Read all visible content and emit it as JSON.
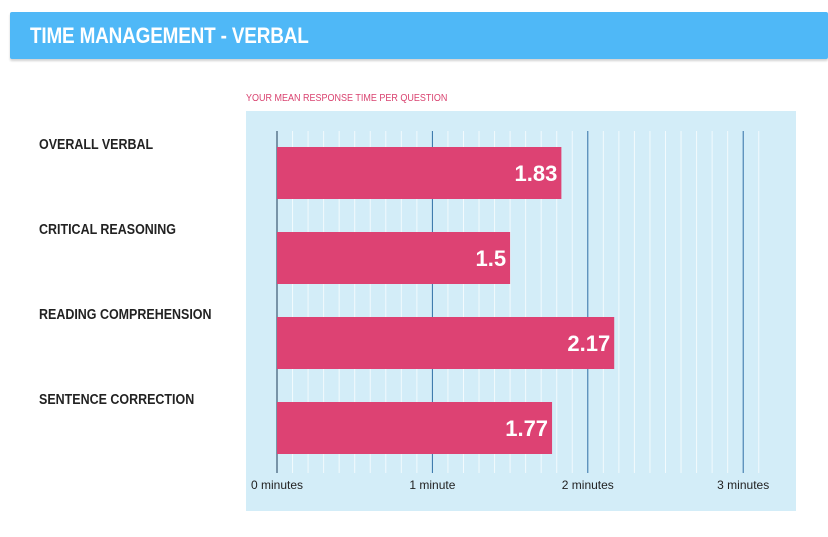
{
  "header": {
    "title": "TIME MANAGEMENT - VERBAL"
  },
  "colors": {
    "header_bg": "#4fb8f7",
    "bar": "#dd4273",
    "plot_bg": "#d3edf8",
    "subtitle": "#d9426f"
  },
  "chart_data": {
    "type": "bar",
    "orientation": "horizontal",
    "title": "YOUR MEAN RESPONSE TIME PER QUESTION",
    "categories": [
      "OVERALL VERBAL",
      "CRITICAL REASONING",
      "READING COMPREHENSION",
      "SENTENCE CORRECTION"
    ],
    "values": [
      1.83,
      1.5,
      2.17,
      1.77
    ],
    "value_labels": [
      "1.83",
      "1.5",
      "2.17",
      "1.77"
    ],
    "xlim": [
      0,
      3.2
    ],
    "x_ticks": [
      0,
      1,
      2,
      3
    ],
    "x_tick_labels": [
      "0 minutes",
      "1 minute",
      "2 minutes",
      "3 minutes"
    ],
    "minor_grid_step": 0.1,
    "grid": true,
    "legend": "none"
  }
}
